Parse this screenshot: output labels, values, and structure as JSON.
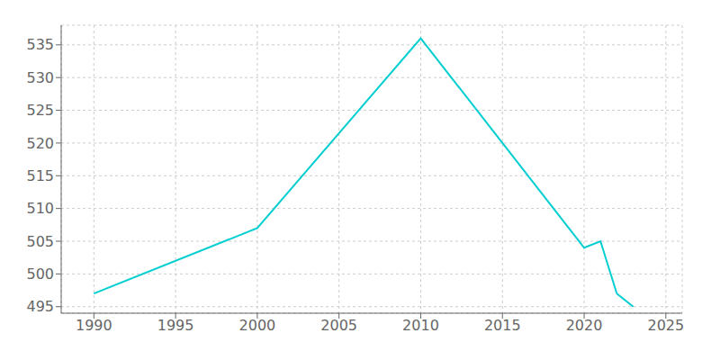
{
  "chart_data": {
    "type": "line",
    "x": [
      1990,
      2000,
      2010,
      2020,
      2021,
      2022,
      2023
    ],
    "values": [
      497,
      507,
      536,
      504,
      505,
      497,
      495
    ],
    "color": "#00CED1",
    "xlim": [
      1988,
      2026
    ],
    "ylim": [
      494,
      538
    ],
    "xticks": [
      1990,
      1995,
      2000,
      2005,
      2010,
      2015,
      2020,
      2025
    ],
    "yticks": [
      495,
      500,
      505,
      510,
      515,
      520,
      525,
      530,
      535
    ],
    "grid": true
  }
}
